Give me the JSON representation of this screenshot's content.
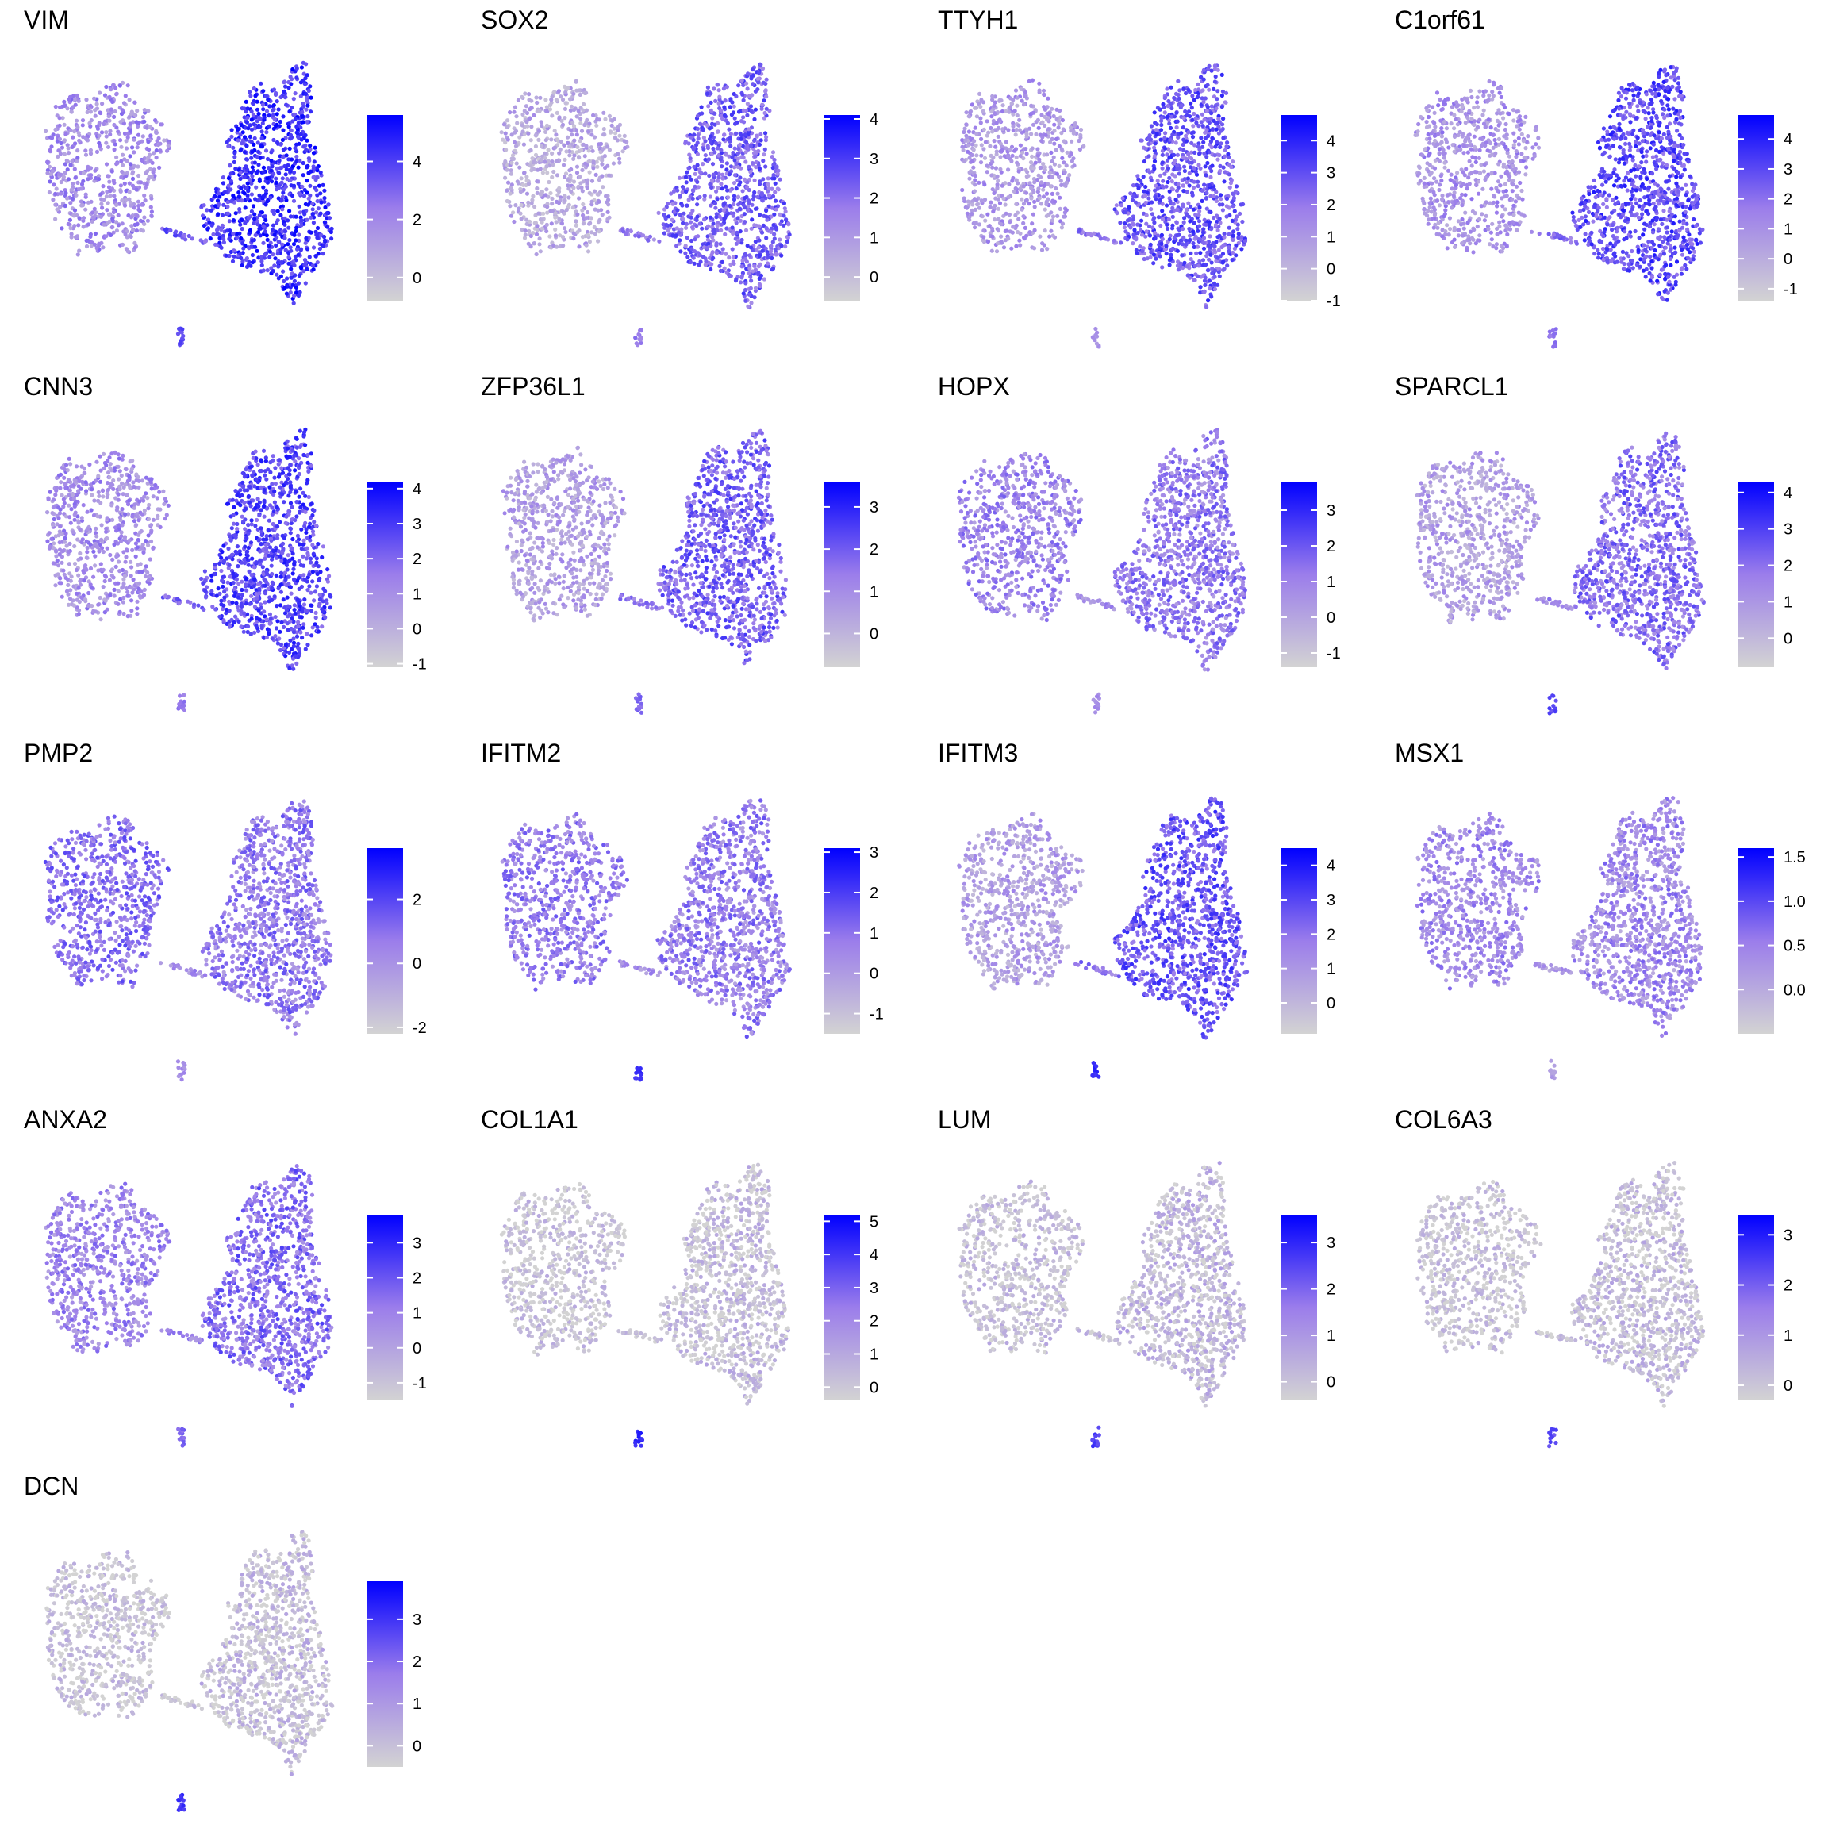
{
  "figure": {
    "type": "feature-plot-grid",
    "columns": 4,
    "low_color": "#d3d3d3",
    "high_color": "#0000ff"
  },
  "chart_data": [
    {
      "type": "scatter",
      "title": "VIM",
      "legend_ticks": [
        "4",
        "2",
        "0"
      ],
      "legend_range": [
        -0.8,
        5.6
      ],
      "level_left": 0.42,
      "level_right": 0.8,
      "level_small": 0.7
    },
    {
      "type": "scatter",
      "title": "SOX2",
      "legend_ticks": [
        "4",
        "3",
        "2",
        "1",
        "0"
      ],
      "legend_range": [
        -0.6,
        4.1
      ],
      "level_left": 0.25,
      "level_right": 0.6,
      "level_small": 0.5
    },
    {
      "type": "scatter",
      "title": "TTYH1",
      "legend_ticks": [
        "4",
        "3",
        "2",
        "1",
        "0",
        "-1"
      ],
      "legend_range": [
        -1.0,
        4.8
      ],
      "level_left": 0.35,
      "level_right": 0.65,
      "level_small": 0.4
    },
    {
      "type": "scatter",
      "title": "C1orf61",
      "legend_ticks": [
        "4",
        "3",
        "2",
        "1",
        "0",
        "-1"
      ],
      "legend_range": [
        -1.4,
        4.8
      ],
      "level_left": 0.38,
      "level_right": 0.7,
      "level_small": 0.55
    },
    {
      "type": "scatter",
      "title": "CNN3",
      "legend_ticks": [
        "4",
        "3",
        "2",
        "1",
        "0",
        "-1"
      ],
      "legend_range": [
        -1.1,
        4.2
      ],
      "level_left": 0.4,
      "level_right": 0.72,
      "level_small": 0.5
    },
    {
      "type": "scatter",
      "title": "ZFP36L1",
      "legend_ticks": [
        "3",
        "2",
        "1",
        "0"
      ],
      "legend_range": [
        -0.8,
        3.6
      ],
      "level_left": 0.3,
      "level_right": 0.6,
      "level_small": 0.6
    },
    {
      "type": "scatter",
      "title": "HOPX",
      "legend_ticks": [
        "3",
        "2",
        "1",
        "0",
        "-1"
      ],
      "legend_range": [
        -1.4,
        3.8
      ],
      "level_left": 0.45,
      "level_right": 0.5,
      "level_small": 0.4
    },
    {
      "type": "scatter",
      "title": "SPARCL1",
      "legend_ticks": [
        "4",
        "3",
        "2",
        "1",
        "0"
      ],
      "legend_range": [
        -0.8,
        4.3
      ],
      "level_left": 0.3,
      "level_right": 0.55,
      "level_small": 0.7
    },
    {
      "type": "scatter",
      "title": "PMP2",
      "legend_ticks": [
        "2",
        "0",
        "-2"
      ],
      "legend_range": [
        -2.2,
        3.6
      ],
      "level_left": 0.55,
      "level_right": 0.5,
      "level_small": 0.4
    },
    {
      "type": "scatter",
      "title": "IFITM2",
      "legend_ticks": [
        "3",
        "2",
        "1",
        "0",
        "-1"
      ],
      "legend_range": [
        -1.5,
        3.1
      ],
      "level_left": 0.5,
      "level_right": 0.48,
      "level_small": 0.8
    },
    {
      "type": "scatter",
      "title": "IFITM3",
      "legend_ticks": [
        "4",
        "3",
        "2",
        "1",
        "0"
      ],
      "legend_range": [
        -0.9,
        4.5
      ],
      "level_left": 0.3,
      "level_right": 0.65,
      "level_small": 0.85
    },
    {
      "type": "scatter",
      "title": "MSX1",
      "legend_ticks": [
        "1.5",
        "1.0",
        "0.5",
        "0.0"
      ],
      "legend_range": [
        -0.5,
        1.6
      ],
      "level_left": 0.42,
      "level_right": 0.42,
      "level_small": 0.3
    },
    {
      "type": "scatter",
      "title": "ANXA2",
      "legend_ticks": [
        "3",
        "2",
        "1",
        "0",
        "-1"
      ],
      "legend_range": [
        -1.5,
        3.8
      ],
      "level_left": 0.45,
      "level_right": 0.55,
      "level_small": 0.6
    },
    {
      "type": "scatter",
      "title": "COL1A1",
      "legend_ticks": [
        "5",
        "4",
        "3",
        "2",
        "1",
        "0"
      ],
      "legend_range": [
        -0.4,
        5.2
      ],
      "level_left": 0.08,
      "level_right": 0.1,
      "level_small": 0.85
    },
    {
      "type": "scatter",
      "title": "LUM",
      "legend_ticks": [
        "3",
        "2",
        "1",
        "0"
      ],
      "legend_range": [
        -0.4,
        3.6
      ],
      "level_left": 0.1,
      "level_right": 0.15,
      "level_small": 0.75
    },
    {
      "type": "scatter",
      "title": "COL6A3",
      "legend_ticks": [
        "3",
        "2",
        "1",
        "0"
      ],
      "legend_range": [
        -0.3,
        3.4
      ],
      "level_left": 0.08,
      "level_right": 0.1,
      "level_small": 0.7
    },
    {
      "type": "scatter",
      "title": "DCN",
      "legend_ticks": [
        "3",
        "2",
        "1",
        "0"
      ],
      "legend_range": [
        -0.5,
        3.9
      ],
      "level_left": 0.08,
      "level_right": 0.1,
      "level_small": 0.8
    }
  ]
}
